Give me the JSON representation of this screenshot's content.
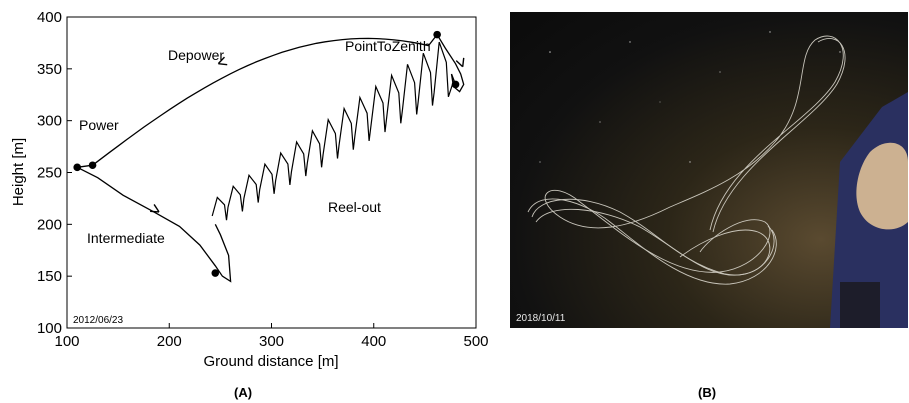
{
  "chart_data": {
    "type": "line",
    "xlabel": "Ground distance [m]",
    "ylabel": "Height [m]",
    "xlim": [
      100,
      500
    ],
    "ylim": [
      100,
      400
    ],
    "xticks": [
      "100",
      "200",
      "300",
      "400",
      "500"
    ],
    "yticks": [
      "100",
      "150",
      "200",
      "250",
      "300",
      "350",
      "400"
    ],
    "grid": false,
    "phases": [
      "Depower",
      "PointToZenith",
      "Power",
      "Reel-out",
      "Intermediate"
    ],
    "phase_points": [
      {
        "x": 110,
        "y": 255
      },
      {
        "x": 125,
        "y": 257
      },
      {
        "x": 462,
        "y": 383
      },
      {
        "x": 480,
        "y": 335
      },
      {
        "x": 245,
        "y": 153
      }
    ],
    "stamp": "2012/06/23"
  },
  "photo": {
    "date": "2018/10/11"
  },
  "panels": {
    "a": "(A)",
    "b": "(B)"
  }
}
